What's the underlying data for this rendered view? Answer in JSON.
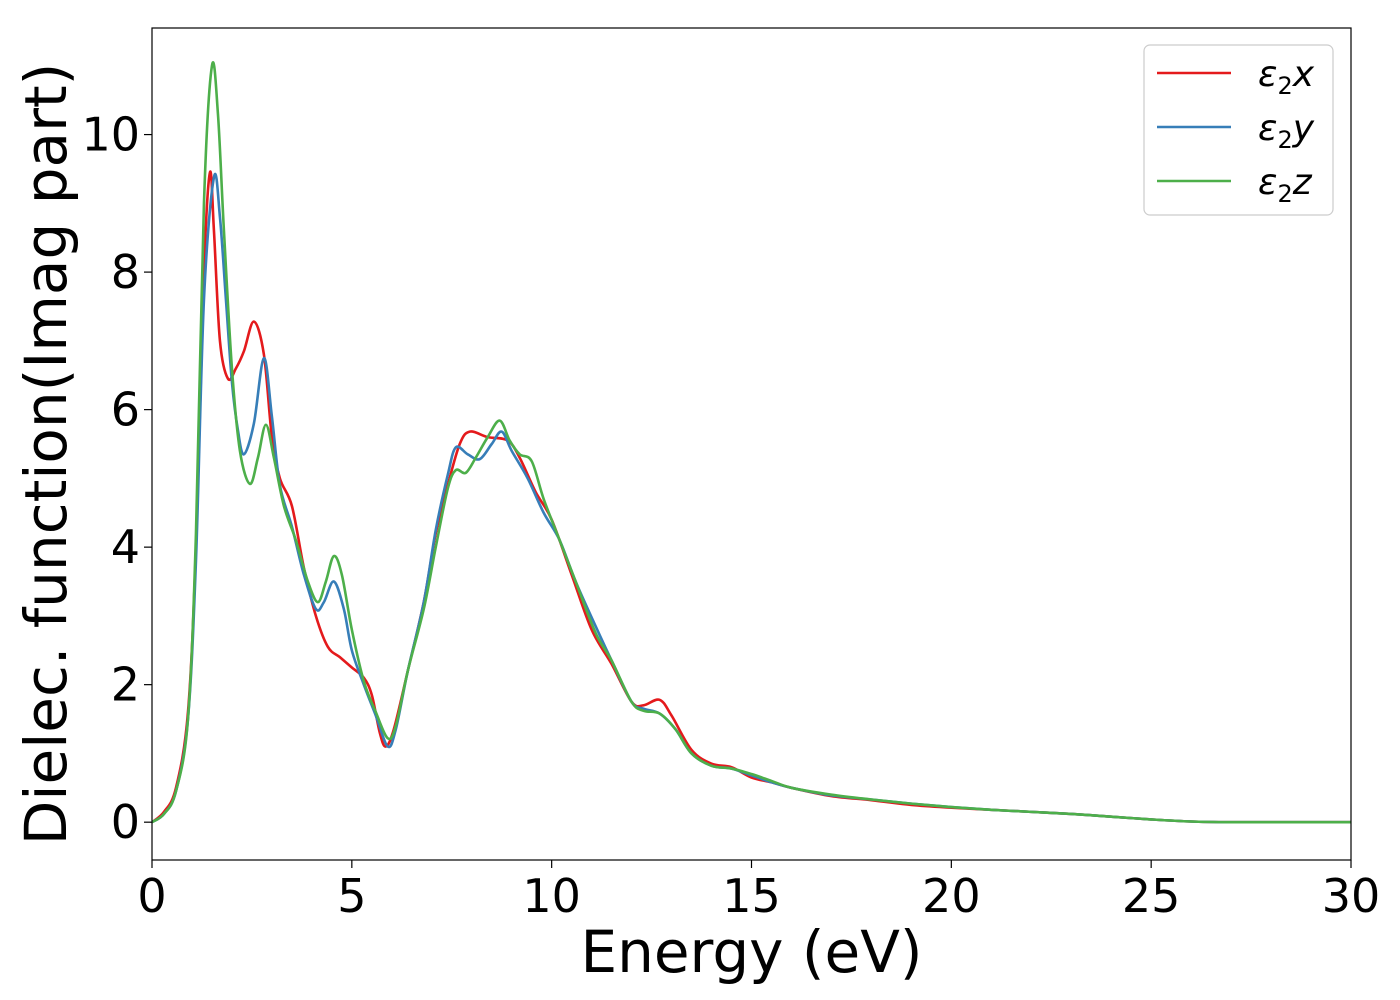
{
  "chart_data": {
    "type": "line",
    "xlabel": "Energy (eV)",
    "ylabel": "Dielec. function(Imag part)",
    "xlim": [
      0,
      30
    ],
    "ylim": [
      -0.55,
      11.55
    ],
    "xticks": [
      "0",
      "5",
      "10",
      "15",
      "20",
      "25",
      "30"
    ],
    "yticks": [
      "0",
      "2",
      "4",
      "6",
      "8",
      "10"
    ],
    "grid": false,
    "legend_position": "top-right",
    "series": [
      {
        "name": "ε₂x",
        "legend": {
          "base": "ε",
          "sub": "2",
          "var": "x"
        },
        "color": "#e41a1c",
        "points": [
          [
            0,
            0
          ],
          [
            0.3,
            0.15
          ],
          [
            0.6,
            0.5
          ],
          [
            0.9,
            1.6
          ],
          [
            1.1,
            4.0
          ],
          [
            1.3,
            8.0
          ],
          [
            1.45,
            9.45
          ],
          [
            1.55,
            8.6
          ],
          [
            1.7,
            7.0
          ],
          [
            1.9,
            6.45
          ],
          [
            2.1,
            6.6
          ],
          [
            2.3,
            6.85
          ],
          [
            2.55,
            7.28
          ],
          [
            2.8,
            6.8
          ],
          [
            3.0,
            5.6
          ],
          [
            3.2,
            5.0
          ],
          [
            3.5,
            4.6
          ],
          [
            3.8,
            3.7
          ],
          [
            4.1,
            3.0
          ],
          [
            4.4,
            2.55
          ],
          [
            4.7,
            2.4
          ],
          [
            5.0,
            2.25
          ],
          [
            5.3,
            2.1
          ],
          [
            5.5,
            1.85
          ],
          [
            5.7,
            1.3
          ],
          [
            5.85,
            1.1
          ],
          [
            6.05,
            1.35
          ],
          [
            6.4,
            2.2
          ],
          [
            6.8,
            3.2
          ],
          [
            7.1,
            4.2
          ],
          [
            7.4,
            4.9
          ],
          [
            7.7,
            5.5
          ],
          [
            7.95,
            5.68
          ],
          [
            8.4,
            5.6
          ],
          [
            8.9,
            5.55
          ],
          [
            9.2,
            5.3
          ],
          [
            9.6,
            4.8
          ],
          [
            10.0,
            4.4
          ],
          [
            10.5,
            3.6
          ],
          [
            11.0,
            2.8
          ],
          [
            11.5,
            2.3
          ],
          [
            12.0,
            1.75
          ],
          [
            12.3,
            1.7
          ],
          [
            12.7,
            1.78
          ],
          [
            13.0,
            1.55
          ],
          [
            13.5,
            1.05
          ],
          [
            14.0,
            0.85
          ],
          [
            14.5,
            0.8
          ],
          [
            15.0,
            0.65
          ],
          [
            15.5,
            0.58
          ],
          [
            16.0,
            0.5
          ],
          [
            17.0,
            0.38
          ],
          [
            18.0,
            0.32
          ],
          [
            19.0,
            0.25
          ],
          [
            20.0,
            0.21
          ],
          [
            21.0,
            0.18
          ],
          [
            22.0,
            0.15
          ],
          [
            23.0,
            0.12
          ],
          [
            24.0,
            0.08
          ],
          [
            25.0,
            0.04
          ],
          [
            26.0,
            0.01
          ],
          [
            27.0,
            0.0
          ],
          [
            28.0,
            0.0
          ],
          [
            30.0,
            0.0
          ]
        ]
      },
      {
        "name": "ε₂y",
        "legend": {
          "base": "ε",
          "sub": "2",
          "var": "y"
        },
        "color": "#377eb8",
        "points": [
          [
            0,
            0
          ],
          [
            0.3,
            0.12
          ],
          [
            0.6,
            0.45
          ],
          [
            0.9,
            1.5
          ],
          [
            1.1,
            3.8
          ],
          [
            1.3,
            7.6
          ],
          [
            1.55,
            9.38
          ],
          [
            1.7,
            8.8
          ],
          [
            1.85,
            7.6
          ],
          [
            2.0,
            6.4
          ],
          [
            2.15,
            5.7
          ],
          [
            2.3,
            5.35
          ],
          [
            2.55,
            5.8
          ],
          [
            2.8,
            6.75
          ],
          [
            3.0,
            5.9
          ],
          [
            3.2,
            4.9
          ],
          [
            3.5,
            4.3
          ],
          [
            3.8,
            3.6
          ],
          [
            4.1,
            3.1
          ],
          [
            4.3,
            3.2
          ],
          [
            4.55,
            3.5
          ],
          [
            4.8,
            3.1
          ],
          [
            5.0,
            2.5
          ],
          [
            5.3,
            2.0
          ],
          [
            5.6,
            1.55
          ],
          [
            5.9,
            1.1
          ],
          [
            6.1,
            1.35
          ],
          [
            6.4,
            2.2
          ],
          [
            6.8,
            3.2
          ],
          [
            7.1,
            4.25
          ],
          [
            7.4,
            5.05
          ],
          [
            7.6,
            5.45
          ],
          [
            7.9,
            5.35
          ],
          [
            8.2,
            5.28
          ],
          [
            8.5,
            5.5
          ],
          [
            8.75,
            5.68
          ],
          [
            9.0,
            5.4
          ],
          [
            9.4,
            5.0
          ],
          [
            9.8,
            4.5
          ],
          [
            10.2,
            4.1
          ],
          [
            10.6,
            3.5
          ],
          [
            11.1,
            2.85
          ],
          [
            11.5,
            2.35
          ],
          [
            12.0,
            1.75
          ],
          [
            12.3,
            1.65
          ],
          [
            12.7,
            1.58
          ],
          [
            13.1,
            1.35
          ],
          [
            13.5,
            1.0
          ],
          [
            14.0,
            0.82
          ],
          [
            14.5,
            0.78
          ],
          [
            15.0,
            0.68
          ],
          [
            15.5,
            0.58
          ],
          [
            16.0,
            0.5
          ],
          [
            17.0,
            0.39
          ],
          [
            18.0,
            0.33
          ],
          [
            19.0,
            0.27
          ],
          [
            20.0,
            0.22
          ],
          [
            21.0,
            0.18
          ],
          [
            22.0,
            0.15
          ],
          [
            23.0,
            0.12
          ],
          [
            24.0,
            0.08
          ],
          [
            25.0,
            0.04
          ],
          [
            26.0,
            0.01
          ],
          [
            27.0,
            0.0
          ],
          [
            28.0,
            0.0
          ],
          [
            30.0,
            0.0
          ]
        ]
      },
      {
        "name": "ε₂z",
        "legend": {
          "base": "ε",
          "sub": "2",
          "var": "z"
        },
        "color": "#4daf4a",
        "points": [
          [
            0,
            0
          ],
          [
            0.3,
            0.12
          ],
          [
            0.6,
            0.45
          ],
          [
            0.9,
            1.5
          ],
          [
            1.1,
            4.2
          ],
          [
            1.3,
            9.0
          ],
          [
            1.5,
            11.0
          ],
          [
            1.65,
            10.3
          ],
          [
            1.8,
            8.6
          ],
          [
            2.0,
            6.6
          ],
          [
            2.2,
            5.4
          ],
          [
            2.45,
            4.92
          ],
          [
            2.65,
            5.3
          ],
          [
            2.85,
            5.78
          ],
          [
            3.05,
            5.3
          ],
          [
            3.3,
            4.6
          ],
          [
            3.6,
            4.1
          ],
          [
            3.9,
            3.5
          ],
          [
            4.15,
            3.2
          ],
          [
            4.35,
            3.5
          ],
          [
            4.55,
            3.87
          ],
          [
            4.75,
            3.6
          ],
          [
            5.0,
            2.8
          ],
          [
            5.3,
            2.05
          ],
          [
            5.6,
            1.6
          ],
          [
            5.9,
            1.22
          ],
          [
            6.1,
            1.4
          ],
          [
            6.4,
            2.2
          ],
          [
            6.8,
            3.1
          ],
          [
            7.1,
            4.0
          ],
          [
            7.4,
            4.85
          ],
          [
            7.6,
            5.12
          ],
          [
            7.85,
            5.08
          ],
          [
            8.1,
            5.3
          ],
          [
            8.4,
            5.6
          ],
          [
            8.7,
            5.84
          ],
          [
            8.95,
            5.55
          ],
          [
            9.2,
            5.35
          ],
          [
            9.5,
            5.25
          ],
          [
            9.8,
            4.7
          ],
          [
            10.2,
            4.1
          ],
          [
            10.6,
            3.5
          ],
          [
            11.1,
            2.75
          ],
          [
            11.5,
            2.35
          ],
          [
            12.0,
            1.75
          ],
          [
            12.3,
            1.62
          ],
          [
            12.7,
            1.58
          ],
          [
            13.1,
            1.35
          ],
          [
            13.5,
            1.0
          ],
          [
            14.0,
            0.82
          ],
          [
            14.5,
            0.78
          ],
          [
            15.0,
            0.7
          ],
          [
            15.5,
            0.6
          ],
          [
            16.0,
            0.5
          ],
          [
            17.0,
            0.4
          ],
          [
            18.0,
            0.33
          ],
          [
            19.0,
            0.27
          ],
          [
            20.0,
            0.22
          ],
          [
            21.0,
            0.18
          ],
          [
            22.0,
            0.15
          ],
          [
            23.0,
            0.12
          ],
          [
            24.0,
            0.08
          ],
          [
            25.0,
            0.04
          ],
          [
            26.0,
            0.01
          ],
          [
            27.0,
            0.0
          ],
          [
            28.0,
            0.0
          ],
          [
            30.0,
            0.0
          ]
        ]
      }
    ]
  }
}
